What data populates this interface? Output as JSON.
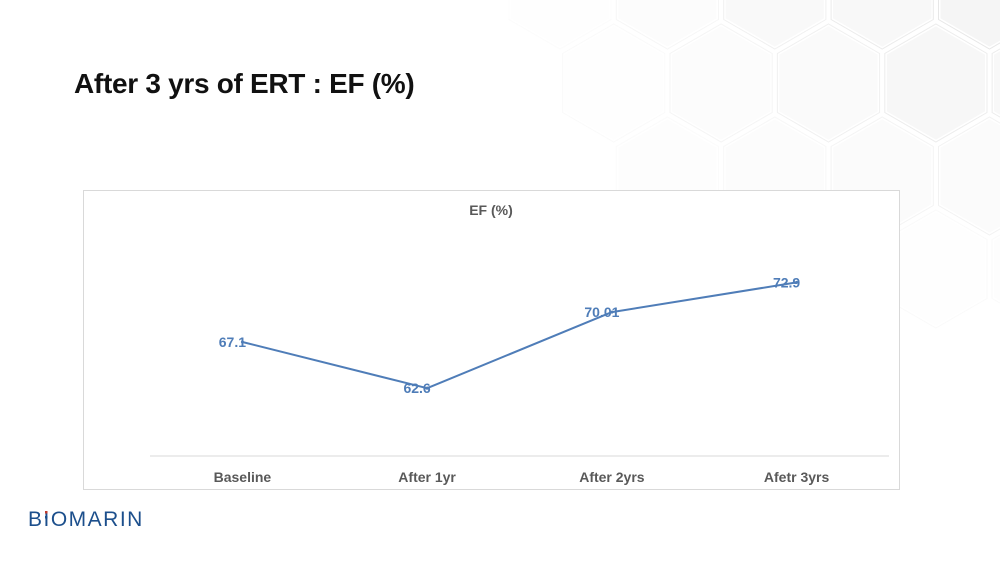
{
  "slide": {
    "title": "After 3 yrs of ERT : EF (%)"
  },
  "logo": {
    "text": "BIOMARIN",
    "color": "#1c4f8c",
    "accent_colors": [
      "#c0392b",
      "#1c4f8c"
    ]
  },
  "chart_data": {
    "type": "line",
    "title": "EF (%)",
    "categories": [
      "Baseline",
      "After 1yr",
      "After 2yrs",
      "Afetr 3yrs"
    ],
    "series": [
      {
        "values": [
          67.1,
          62.6,
          70.01,
          72.9
        ],
        "labels": [
          "67.1",
          "62.6",
          "70.01",
          "72.9"
        ],
        "color": "#4f7db8"
      }
    ],
    "ylim": [
      56,
      78
    ],
    "grid": false,
    "legend": "none",
    "xlabel": "",
    "ylabel": ""
  }
}
